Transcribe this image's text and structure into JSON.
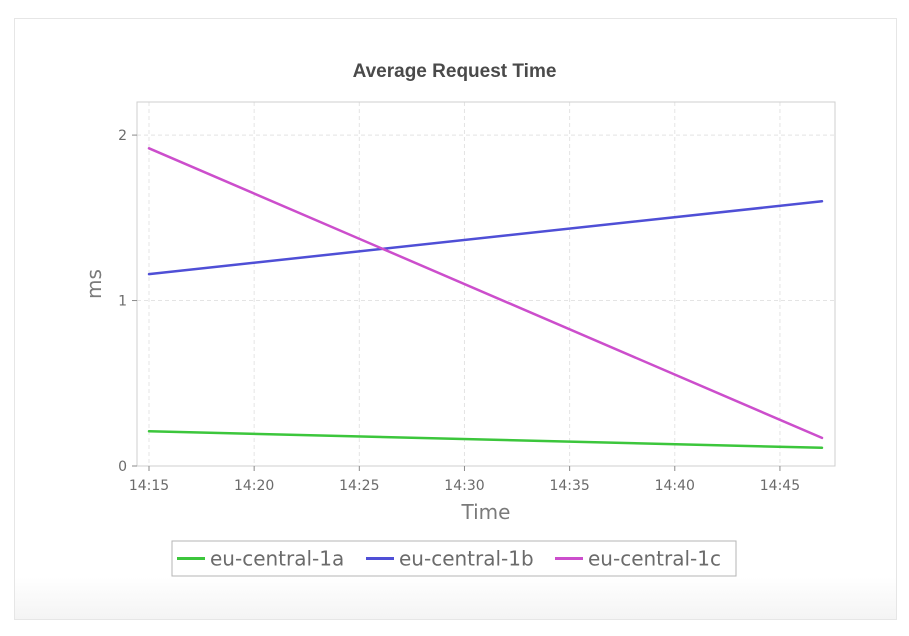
{
  "chart_data": {
    "type": "line",
    "title": "Average Request Time",
    "xlabel": "Time",
    "ylabel": "ms",
    "x_ticks": [
      "14:15",
      "14:20",
      "14:25",
      "14:30",
      "14:35",
      "14:40",
      "14:45"
    ],
    "y_ticks": [
      "0",
      "1",
      "2"
    ],
    "x_domain": [
      "14:15",
      "14:47"
    ],
    "ylim": [
      0,
      2.2
    ],
    "grid": true,
    "legend_position": "bottom",
    "series": [
      {
        "name": "eu-central-1a",
        "color": "#3cc63c",
        "points": [
          {
            "x": "14:15",
            "y": 0.21
          },
          {
            "x": "14:47",
            "y": 0.11
          }
        ]
      },
      {
        "name": "eu-central-1b",
        "color": "#4f4fd6",
        "points": [
          {
            "x": "14:15",
            "y": 1.16
          },
          {
            "x": "14:47",
            "y": 1.6
          }
        ]
      },
      {
        "name": "eu-central-1c",
        "color": "#cc4ecc",
        "points": [
          {
            "x": "14:15",
            "y": 1.92
          },
          {
            "x": "14:47",
            "y": 0.17
          }
        ]
      }
    ]
  }
}
